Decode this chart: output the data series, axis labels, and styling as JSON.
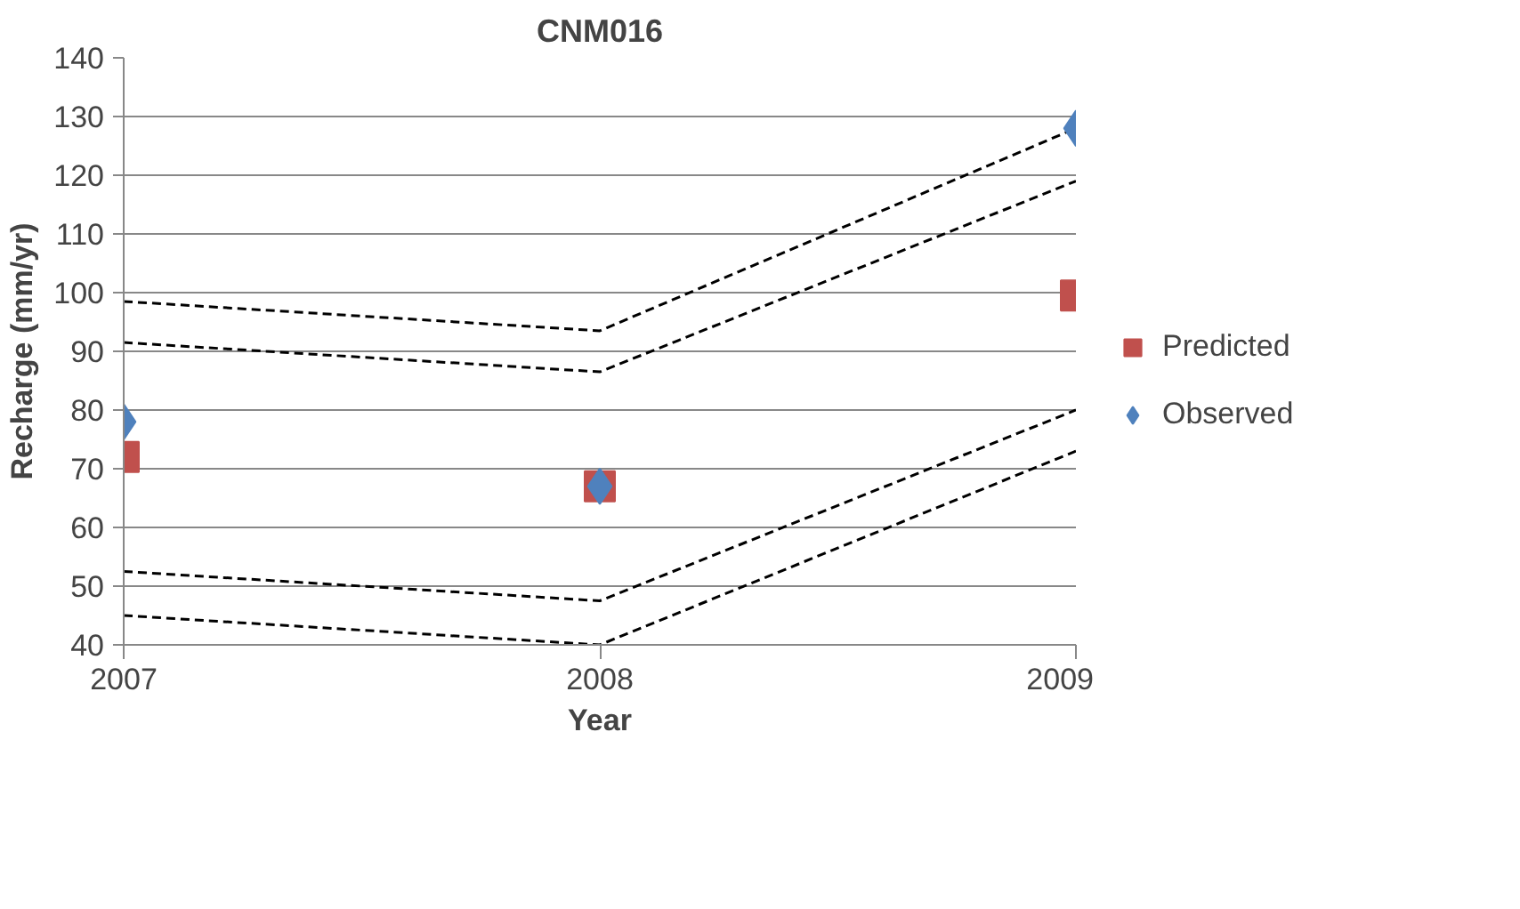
{
  "chart_data": {
    "type": "line",
    "title": "CNM016",
    "xlabel": "Year",
    "ylabel": "Recharge (mm/yr)",
    "x": [
      2007,
      2008,
      2009
    ],
    "xlim": [
      2007,
      2009
    ],
    "xticks": [
      2007,
      2008,
      2009
    ],
    "ylim": [
      40,
      140
    ],
    "yticks": [
      40,
      50,
      60,
      70,
      80,
      90,
      100,
      110,
      120,
      130,
      140
    ],
    "grid": "y",
    "legend": "right",
    "series": [
      {
        "color": "#000000",
        "line_style": "dashed",
        "marker": "none",
        "values": [
          98.5,
          93.5,
          128
        ]
      },
      {
        "color": "#000000",
        "line_style": "dashed",
        "marker": "none",
        "values": [
          91.5,
          86.5,
          119
        ]
      },
      {
        "color": "#000000",
        "line_style": "dashed",
        "marker": "none",
        "values": [
          52.5,
          47.5,
          80
        ]
      },
      {
        "color": "#000000",
        "line_style": "dashed",
        "marker": "none",
        "values": [
          45,
          40,
          73
        ]
      },
      {
        "name": "Predicted",
        "type": "scatter",
        "marker": "square",
        "color": "#c0504d",
        "values": [
          72,
          67,
          99.5
        ]
      },
      {
        "name": "Observed",
        "type": "scatter",
        "marker": "diamond",
        "color": "#4f81bd",
        "values": [
          78,
          67,
          128
        ]
      }
    ]
  }
}
